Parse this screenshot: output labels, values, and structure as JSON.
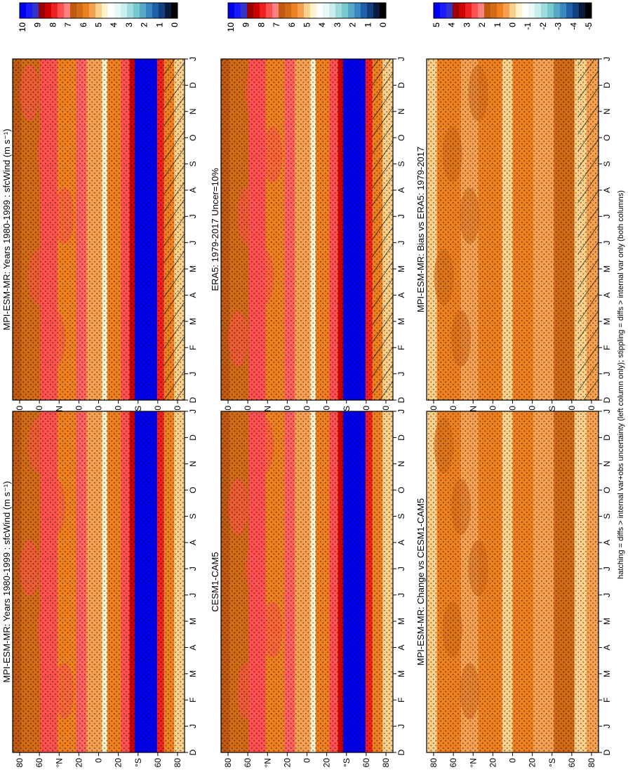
{
  "footnote": "hatching = diffs > internal var+obs uncertainty (left column only); stippling = diffs > internal var only (both columns)",
  "chart_data": [
    {
      "id": "p1",
      "type": "heatmap",
      "title": "MPI-ESM-MR: Years 1980-1999 : sfcWind (m s⁻¹)",
      "hatched": true,
      "kind": "clim",
      "x": [
        "D",
        "J",
        "F",
        "M",
        "A",
        "M",
        "J",
        "J",
        "A",
        "S",
        "O",
        "N",
        "D",
        "J"
      ],
      "y": [
        "80",
        "60",
        "°N",
        "20",
        "0",
        "20",
        "°S",
        "60",
        "80"
      ]
    },
    {
      "id": "p2",
      "type": "heatmap",
      "title": "MPI-ESM-MR: Years 1980-1999 : sfcWind (m s⁻¹)",
      "hatched": false,
      "kind": "clim",
      "x": [
        "D",
        "J",
        "F",
        "M",
        "A",
        "M",
        "J",
        "J",
        "A",
        "S",
        "O",
        "N",
        "D",
        "J"
      ],
      "y": [
        "80",
        "60",
        "°N",
        "20",
        "0",
        "20",
        "°S",
        "60",
        "80"
      ]
    },
    {
      "id": "p3",
      "type": "heatmap",
      "title": "ERA5: 1979-2017 Uncer=10%",
      "hatched": true,
      "kind": "clim",
      "x": [
        "D",
        "J",
        "F",
        "M",
        "A",
        "M",
        "J",
        "J",
        "A",
        "S",
        "O",
        "N",
        "D",
        "J"
      ],
      "y": [
        "80",
        "60",
        "°N",
        "20",
        "0",
        "20",
        "°S",
        "60",
        "80"
      ]
    },
    {
      "id": "p4",
      "type": "heatmap",
      "title": "CESM1-CAM5",
      "hatched": false,
      "kind": "clim",
      "x": [
        "D",
        "J",
        "F",
        "M",
        "A",
        "M",
        "J",
        "J",
        "A",
        "S",
        "O",
        "N",
        "D",
        "J"
      ],
      "y": [
        "80",
        "60",
        "°N",
        "20",
        "0",
        "20",
        "°S",
        "60",
        "80"
      ]
    },
    {
      "id": "p5",
      "type": "heatmap",
      "title": "MPI-ESM-MR: Bias vs ERA5: 1979-2017",
      "hatched": true,
      "kind": "diff",
      "x": [
        "D",
        "J",
        "F",
        "M",
        "A",
        "M",
        "J",
        "J",
        "A",
        "S",
        "O",
        "N",
        "D",
        "J"
      ],
      "y": [
        "80",
        "60",
        "°N",
        "20",
        "0",
        "20",
        "°S",
        "60",
        "80"
      ]
    },
    {
      "id": "p6",
      "type": "heatmap",
      "title": "MPI-ESM-MR: Change vs CESM1-CAM5",
      "hatched": false,
      "kind": "diff",
      "x": [
        "D",
        "J",
        "F",
        "M",
        "A",
        "M",
        "J",
        "J",
        "A",
        "S",
        "O",
        "N",
        "D",
        "J"
      ],
      "y": [
        "80",
        "60",
        "°N",
        "20",
        "0",
        "20",
        "°S",
        "60",
        "80"
      ]
    }
  ],
  "colorbars": {
    "clim": {
      "labels": [
        "10",
        "9",
        "8",
        "7",
        "6",
        "5",
        "4",
        "3",
        "2",
        "1",
        "0"
      ],
      "colors": [
        "#0000ee",
        "#1a1aff",
        "#3333cc",
        "#990000",
        "#cc0000",
        "#ee2020",
        "#ff5050",
        "#ff8080",
        "#c05a10",
        "#d26a16",
        "#ee8020",
        "#f5a050",
        "#fbd08a",
        "#fff2cc",
        "#ffffff",
        "#e8f8f8",
        "#c8eeee",
        "#a0dcdc",
        "#78c8d0",
        "#5aa8c8",
        "#3a88c0",
        "#2060a8",
        "#104080",
        "#081a40",
        "#000000"
      ]
    },
    "diff": {
      "labels": [
        "5",
        "4",
        "3",
        "2",
        "1",
        "0",
        "-1",
        "-2",
        "-3",
        "-4",
        "-5"
      ],
      "colors": [
        "#0000ee",
        "#1a1aff",
        "#3333cc",
        "#990000",
        "#cc0000",
        "#ee2020",
        "#ff5050",
        "#ff8080",
        "#c05a10",
        "#d26a16",
        "#ee8020",
        "#f5a050",
        "#fbd08a",
        "#fff2cc",
        "#ffffff",
        "#e8f8f8",
        "#c8eeee",
        "#a0dcdc",
        "#78c8d0",
        "#5aa8c8",
        "#3a88c0",
        "#2060a8",
        "#104080",
        "#081a40",
        "#000000"
      ]
    }
  }
}
